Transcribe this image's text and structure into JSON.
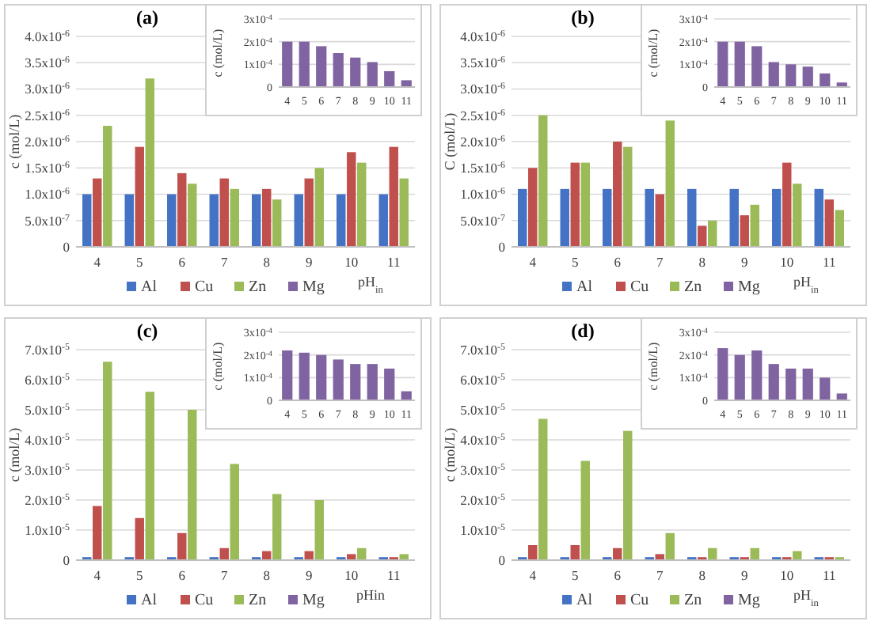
{
  "chart_data": [
    {
      "type": "bar",
      "title": "(a)",
      "xlabel": "pH$_{in}$",
      "ylabel": "c (mol/L)",
      "categories": [
        "4",
        "5",
        "6",
        "7",
        "8",
        "9",
        "10",
        "11"
      ],
      "ylim": [
        0,
        4e-06
      ],
      "yticks": [
        {
          "value": 0,
          "label": "0"
        },
        {
          "value": 5e-07,
          "label": "5.0x10$^{-7}$"
        },
        {
          "value": 1e-06,
          "label": "1.0x10$^{-6}$"
        },
        {
          "value": 1.5e-06,
          "label": "1.5x10$^{-6}$"
        },
        {
          "value": 2e-06,
          "label": "2.0x10$^{-6}$"
        },
        {
          "value": 2.5e-06,
          "label": "2.5x10$^{-6}$"
        },
        {
          "value": 3e-06,
          "label": "3.0x10$^{-6}$"
        },
        {
          "value": 3.5e-06,
          "label": "3.5x10$^{-6}$"
        },
        {
          "value": 4e-06,
          "label": "4.0x10$^{-6}$"
        }
      ],
      "grid": "y",
      "legend": "bottom",
      "series": [
        {
          "name": "Al",
          "color": "#4472c4",
          "values": [
            1e-06,
            1e-06,
            1e-06,
            1e-06,
            1e-06,
            1e-06,
            1e-06,
            1e-06
          ]
        },
        {
          "name": "Cu",
          "color": "#c0504d",
          "values": [
            1.3e-06,
            1.9e-06,
            1.4e-06,
            1.3e-06,
            1.1e-06,
            1.3e-06,
            1.8e-06,
            1.9e-06
          ]
        },
        {
          "name": "Zn",
          "color": "#9bbb59",
          "values": [
            2.3e-06,
            3.2e-06,
            1.2e-06,
            1.1e-06,
            9e-07,
            1.5e-06,
            1.6e-06,
            1.3e-06
          ]
        },
        {
          "name": "Mg",
          "color": "#8064a2",
          "values": [
            null,
            null,
            null,
            null,
            null,
            null,
            null,
            null
          ]
        }
      ]
    },
    {
      "type": "bar",
      "ylabel": "c (mol/L)",
      "categories": [
        "4",
        "5",
        "6",
        "7",
        "8",
        "9",
        "10",
        "11"
      ],
      "ylim": [
        0,
        0.0003
      ],
      "yticks": [
        {
          "value": 0,
          "label": "0"
        },
        {
          "value": 0.0001,
          "label": "1x10$^{-4}$"
        },
        {
          "value": 0.0002,
          "label": "2x10$^{-4}$"
        },
        {
          "value": 0.0003,
          "label": "3x10$^{-4}$"
        }
      ],
      "grid": "y",
      "series": [
        {
          "color": "#8064a2",
          "values": [
            0.0002,
            0.0002,
            0.00018,
            0.00015,
            0.00013,
            0.00011,
            7e-05,
            3e-05
          ]
        }
      ]
    },
    {
      "type": "bar",
      "title": "(b)",
      "xlabel": "pH$_{in}$",
      "ylabel": "C (mol/L)",
      "categories": [
        "4",
        "5",
        "6",
        "7",
        "8",
        "9",
        "10",
        "11"
      ],
      "ylim": [
        0,
        4e-06
      ],
      "yticks": [
        {
          "value": 0,
          "label": "0"
        },
        {
          "value": 5e-07,
          "label": "5.0x10$^{-7}$"
        },
        {
          "value": 1e-06,
          "label": "1.0x10$^{-6}$"
        },
        {
          "value": 1.5e-06,
          "label": "1.5x10$^{-6}$"
        },
        {
          "value": 2e-06,
          "label": "2.0x10$^{-6}$"
        },
        {
          "value": 2.5e-06,
          "label": "2.5x10$^{-6}$"
        },
        {
          "value": 3e-06,
          "label": "3.0x10$^{-6}$"
        },
        {
          "value": 3.5e-06,
          "label": "3.5x10$^{-6}$"
        },
        {
          "value": 4e-06,
          "label": "4.0x10$^{-6}$"
        }
      ],
      "grid": "y",
      "legend": "bottom",
      "series": [
        {
          "name": "Al",
          "color": "#4472c4",
          "values": [
            1.1e-06,
            1.1e-06,
            1.1e-06,
            1.1e-06,
            1.1e-06,
            1.1e-06,
            1.1e-06,
            1.1e-06
          ]
        },
        {
          "name": "Cu",
          "color": "#c0504d",
          "values": [
            1.5e-06,
            1.6e-06,
            2e-06,
            1e-06,
            4e-07,
            6e-07,
            1.6e-06,
            9e-07
          ]
        },
        {
          "name": "Zn",
          "color": "#9bbb59",
          "values": [
            2.5e-06,
            1.6e-06,
            1.9e-06,
            2.4e-06,
            5e-07,
            8e-07,
            1.2e-06,
            7e-07
          ]
        },
        {
          "name": "Mg",
          "color": "#8064a2",
          "values": [
            null,
            null,
            null,
            null,
            null,
            null,
            null,
            null
          ]
        }
      ]
    },
    {
      "type": "bar",
      "ylabel": "c (mol/L)",
      "categories": [
        "4",
        "5",
        "6",
        "7",
        "8",
        "9",
        "10",
        "11"
      ],
      "ylim": [
        0,
        0.0003
      ],
      "yticks": [
        {
          "value": 0,
          "label": "0"
        },
        {
          "value": 0.0001,
          "label": "1x10$^{-4}$"
        },
        {
          "value": 0.0002,
          "label": "2x10$^{-4}$"
        },
        {
          "value": 0.0003,
          "label": "3x10$^{-4}$"
        }
      ],
      "grid": "y",
      "series": [
        {
          "color": "#8064a2",
          "values": [
            0.0002,
            0.0002,
            0.00018,
            0.00011,
            0.0001,
            9e-05,
            6e-05,
            2e-05
          ]
        }
      ]
    },
    {
      "type": "bar",
      "title": "(c)",
      "xlabel": "pHin",
      "ylabel": "c (mol/L)",
      "categories": [
        "4",
        "5",
        "6",
        "7",
        "8",
        "9",
        "10",
        "11"
      ],
      "ylim": [
        0,
        7e-05
      ],
      "yticks": [
        {
          "value": 0,
          "label": "0"
        },
        {
          "value": 1e-05,
          "label": "1.0x10$^{-5}$"
        },
        {
          "value": 2e-05,
          "label": "2.0x10$^{-5}$"
        },
        {
          "value": 3e-05,
          "label": "3.0x10$^{-5}$"
        },
        {
          "value": 4e-05,
          "label": "4.0x10$^{-5}$"
        },
        {
          "value": 5e-05,
          "label": "5.0x10$^{-5}$"
        },
        {
          "value": 6e-05,
          "label": "6.0x10$^{-5}$"
        },
        {
          "value": 7e-05,
          "label": "7.0x10$^{-5}$"
        }
      ],
      "grid": "y",
      "legend": "bottom",
      "series": [
        {
          "name": "Al",
          "color": "#4472c4",
          "values": [
            1e-06,
            1e-06,
            1e-06,
            1e-06,
            1e-06,
            1e-06,
            1e-06,
            1e-06
          ]
        },
        {
          "name": "Cu",
          "color": "#c0504d",
          "values": [
            1.8e-05,
            1.4e-05,
            9e-06,
            4e-06,
            3e-06,
            3e-06,
            2e-06,
            1e-06
          ]
        },
        {
          "name": "Zn",
          "color": "#9bbb59",
          "values": [
            6.6e-05,
            5.6e-05,
            5e-05,
            3.2e-05,
            2.2e-05,
            2e-05,
            4e-06,
            2e-06
          ]
        },
        {
          "name": "Mg",
          "color": "#8064a2",
          "values": [
            null,
            null,
            null,
            null,
            null,
            null,
            null,
            null
          ]
        }
      ]
    },
    {
      "type": "bar",
      "ylabel": "c (mol/L)",
      "categories": [
        "4",
        "5",
        "6",
        "7",
        "8",
        "9",
        "10",
        "11"
      ],
      "ylim": [
        0,
        0.0003
      ],
      "yticks": [
        {
          "value": 0,
          "label": "0"
        },
        {
          "value": 0.0001,
          "label": "1x10$^{-4}$"
        },
        {
          "value": 0.0002,
          "label": "2x10$^{-4}$"
        },
        {
          "value": 0.0003,
          "label": "3x10$^{-4}$"
        }
      ],
      "grid": "y",
      "series": [
        {
          "color": "#8064a2",
          "values": [
            0.00022,
            0.00021,
            0.0002,
            0.00018,
            0.00016,
            0.00016,
            0.00014,
            4e-05
          ]
        }
      ]
    },
    {
      "type": "bar",
      "title": "(d)",
      "xlabel": "pH$_{in}$",
      "ylabel": "c (mol/L)",
      "categories": [
        "4",
        "5",
        "6",
        "7",
        "8",
        "9",
        "10",
        "11"
      ],
      "ylim": [
        0,
        7e-05
      ],
      "yticks": [
        {
          "value": 0,
          "label": "0"
        },
        {
          "value": 1e-05,
          "label": "1.0x10$^{-5}$"
        },
        {
          "value": 2e-05,
          "label": "2.0x10$^{-5}$"
        },
        {
          "value": 3e-05,
          "label": "3.0x10$^{-5}$"
        },
        {
          "value": 4e-05,
          "label": "4.0x10$^{-5}$"
        },
        {
          "value": 5e-05,
          "label": "5.0x10$^{-5}$"
        },
        {
          "value": 6e-05,
          "label": "6.0x10$^{-5}$"
        },
        {
          "value": 7e-05,
          "label": "7.0x10$^{-5}$"
        }
      ],
      "grid": "y",
      "legend": "bottom",
      "series": [
        {
          "name": "Al",
          "color": "#4472c4",
          "values": [
            1e-06,
            1e-06,
            1e-06,
            1e-06,
            1e-06,
            1e-06,
            1e-06,
            1e-06
          ]
        },
        {
          "name": "Cu",
          "color": "#c0504d",
          "values": [
            5e-06,
            5e-06,
            4e-06,
            2e-06,
            1e-06,
            1e-06,
            1e-06,
            1e-06
          ]
        },
        {
          "name": "Zn",
          "color": "#9bbb59",
          "values": [
            4.7e-05,
            3.3e-05,
            4.3e-05,
            9e-06,
            4e-06,
            4e-06,
            3e-06,
            1e-06
          ]
        },
        {
          "name": "Mg",
          "color": "#8064a2",
          "values": [
            null,
            null,
            null,
            null,
            null,
            null,
            null,
            null
          ]
        }
      ]
    },
    {
      "type": "bar",
      "ylabel": "c (mol/L)",
      "categories": [
        "4",
        "5",
        "6",
        "7",
        "8",
        "9",
        "10",
        "11"
      ],
      "ylim": [
        0,
        0.0003
      ],
      "yticks": [
        {
          "value": 0,
          "label": "0"
        },
        {
          "value": 0.0001,
          "label": "1x10$^{-4}$"
        },
        {
          "value": 0.0002,
          "label": "2x10$^{-4}$"
        },
        {
          "value": 0.0003,
          "label": "3x10$^{-4}$"
        }
      ],
      "grid": "y",
      "series": [
        {
          "color": "#8064a2",
          "values": [
            0.00023,
            0.0002,
            0.00022,
            0.00016,
            0.00014,
            0.00014,
            0.0001,
            3e-05
          ]
        }
      ]
    }
  ]
}
